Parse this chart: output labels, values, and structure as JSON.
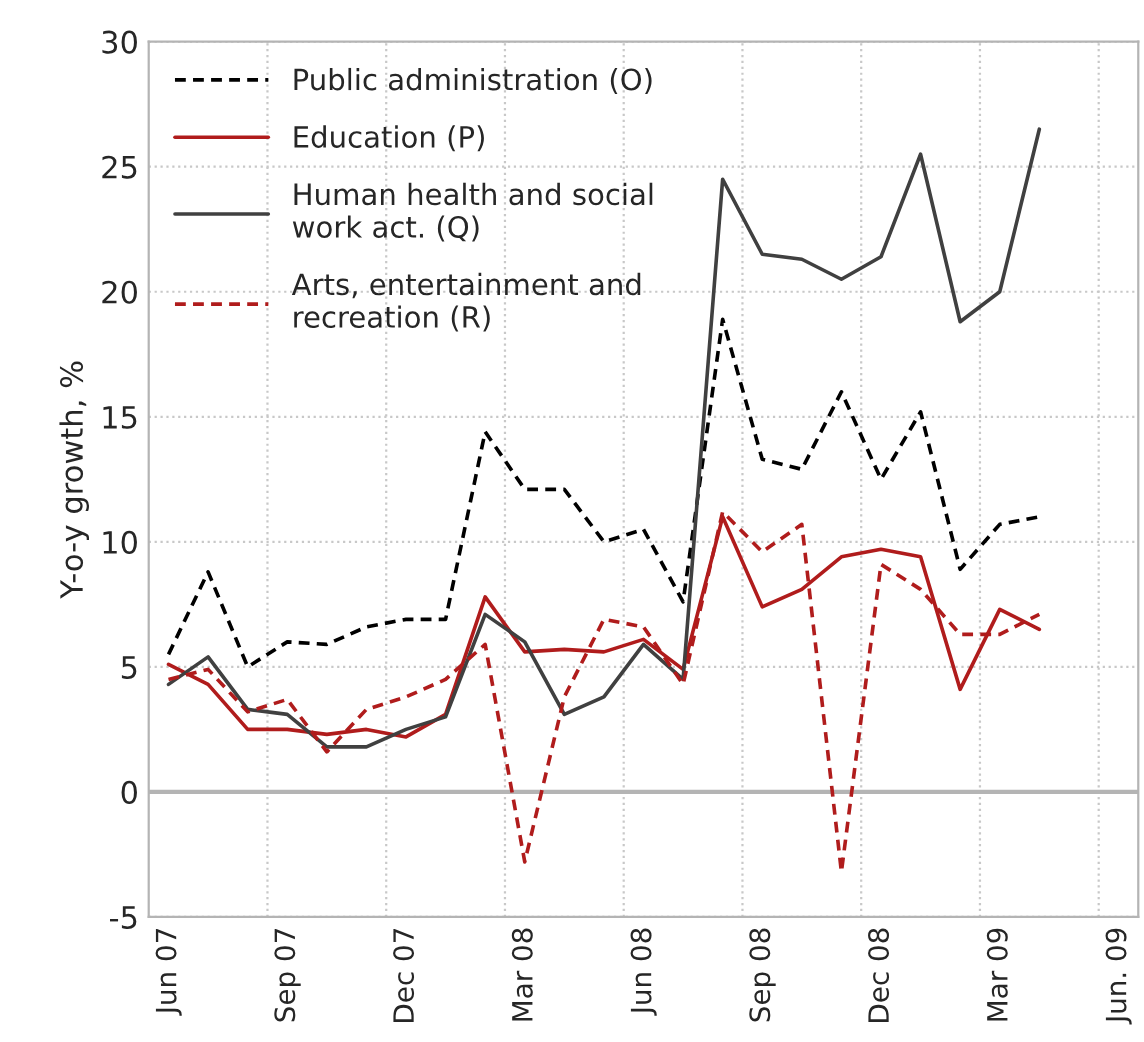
{
  "chart_data": {
    "type": "line",
    "ylabel": "Y-o-y growth, %",
    "categories": [
      "Jun 07",
      null,
      null,
      "Sep 07",
      null,
      null,
      "Dec 07",
      null,
      null,
      "Mar 08",
      null,
      null,
      "Jun 08",
      null,
      null,
      "Sep 08",
      null,
      null,
      "Dec 08",
      null,
      null,
      "Mar 09",
      null,
      null,
      "Jun. 09"
    ],
    "series": [
      {
        "name": "Public administration (O)",
        "color": "#000000",
        "line_style": "dashed",
        "values": [
          5.5,
          8.8,
          5.0,
          6.0,
          5.9,
          6.6,
          6.9,
          6.9,
          14.4,
          12.1,
          12.1,
          10.0,
          10.5,
          7.6,
          18.9,
          13.3,
          12.9,
          16.0,
          12.5,
          15.2,
          8.9,
          10.7,
          11.0,
          null,
          null
        ]
      },
      {
        "name": "Education (P)",
        "color": "#b01c1c",
        "line_style": "solid",
        "values": [
          5.1,
          4.3,
          2.5,
          2.5,
          2.3,
          2.5,
          2.2,
          3.1,
          7.8,
          5.6,
          5.7,
          5.6,
          6.1,
          4.9,
          11.0,
          7.4,
          8.1,
          9.4,
          9.7,
          9.4,
          4.1,
          7.3,
          6.5,
          null,
          null
        ]
      },
      {
        "name": "Human health and social work act. (Q)",
        "color": "#404040",
        "line_style": "solid",
        "values": [
          4.3,
          5.4,
          3.3,
          3.1,
          1.8,
          1.8,
          2.5,
          3.0,
          7.1,
          6.0,
          3.1,
          3.8,
          5.9,
          4.5,
          24.5,
          21.5,
          21.3,
          20.5,
          21.4,
          25.5,
          18.8,
          20.0,
          26.5,
          null,
          null
        ]
      },
      {
        "name": "Arts, entertainment and recreation (R)",
        "color": "#b01c1c",
        "line_style": "dashed",
        "values": [
          4.5,
          4.9,
          3.2,
          3.7,
          1.6,
          3.3,
          3.8,
          4.5,
          5.9,
          -2.8,
          3.8,
          6.9,
          6.6,
          4.3,
          11.2,
          9.6,
          10.7,
          -3.2,
          9.1,
          8.1,
          6.3,
          6.3,
          7.1,
          null,
          null
        ]
      }
    ],
    "ylim": [
      -5,
      30
    ],
    "yticks": [
      -5,
      0,
      5,
      10,
      15,
      20,
      25,
      30
    ],
    "ref_lines": [
      {
        "axis": "y",
        "value": 0,
        "color": "#b4b4b4"
      }
    ],
    "grid": true,
    "legend": "top left",
    "marker": "none"
  }
}
